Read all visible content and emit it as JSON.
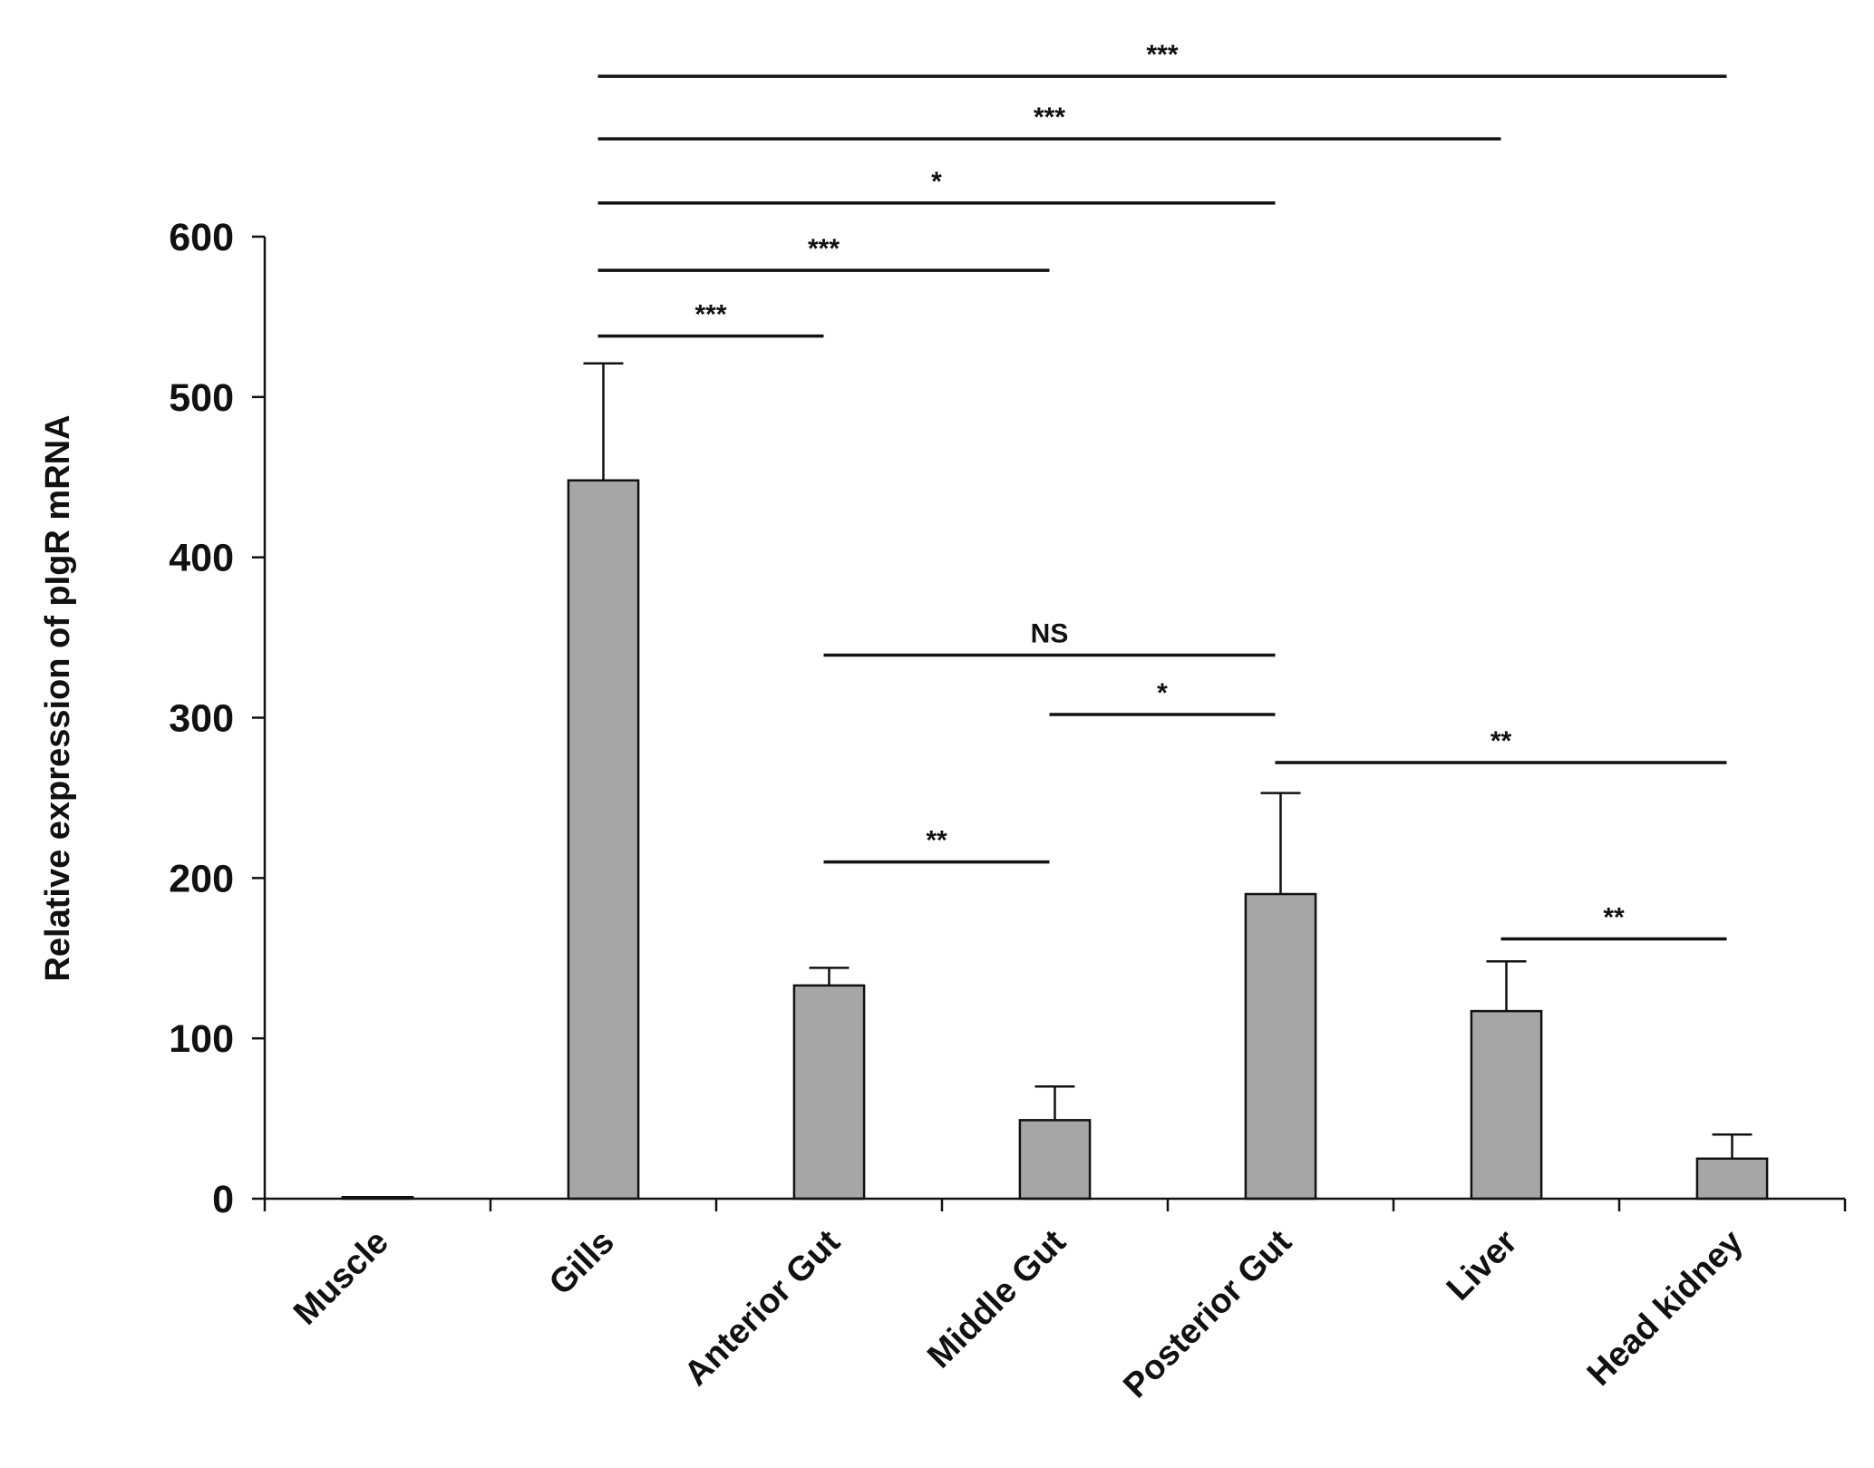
{
  "chart_data": {
    "type": "bar",
    "ylabel": "Relative expression of pIgR mRNA",
    "ylim": [
      0,
      600
    ],
    "yticks": [
      0,
      100,
      200,
      300,
      400,
      500,
      600
    ],
    "categories": [
      "Muscle",
      "Gills",
      "Anterior Gut",
      "Middle Gut",
      "Posterior Gut",
      "Liver",
      "Head kidney"
    ],
    "values": [
      1,
      448,
      133,
      49,
      190,
      117,
      25
    ],
    "errors": [
      0,
      73,
      11,
      21,
      63,
      31,
      15
    ],
    "bar_color": "#a6a6a6",
    "significance": [
      {
        "from": "Gills",
        "to": "Head kidney",
        "y": 700,
        "label": "***"
      },
      {
        "from": "Gills",
        "to": "Liver",
        "y": 661,
        "label": "***"
      },
      {
        "from": "Gills",
        "to": "Posterior Gut",
        "y": 621,
        "label": "*"
      },
      {
        "from": "Gills",
        "to": "Middle Gut",
        "y": 579,
        "label": "***"
      },
      {
        "from": "Gills",
        "to": "Anterior Gut",
        "y": 538,
        "label": "***"
      },
      {
        "from": "Anterior Gut",
        "to": "Posterior Gut",
        "y": 339,
        "label": "NS"
      },
      {
        "from": "Middle Gut",
        "to": "Posterior Gut",
        "y": 302,
        "label": "*"
      },
      {
        "from": "Posterior Gut",
        "to": "Head kidney",
        "y": 272,
        "label": "**"
      },
      {
        "from": "Anterior Gut",
        "to": "Middle Gut",
        "y": 210,
        "label": "**"
      },
      {
        "from": "Liver",
        "to": "Head kidney",
        "y": 162,
        "label": "**"
      }
    ]
  }
}
